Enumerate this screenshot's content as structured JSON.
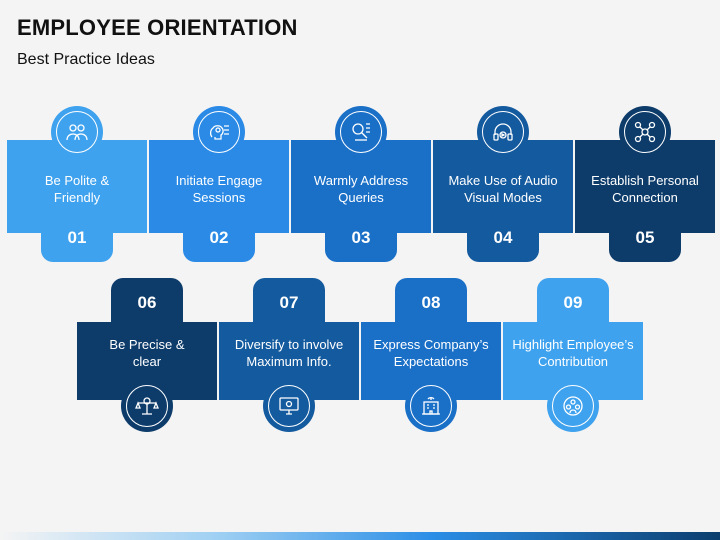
{
  "title": "EMPLOYEE ORIENTATION",
  "subtitle": "Best Practice Ideas",
  "steps": [
    {
      "number": "01",
      "label_line1": "Be Polite &",
      "label_line2": "Friendly",
      "icon": "people-icon",
      "color": "#3fa2ee"
    },
    {
      "number": "02",
      "label_line1": "Initiate Engage",
      "label_line2": "Sessions",
      "icon": "brain-idea-icon",
      "color": "#2a8ae6"
    },
    {
      "number": "03",
      "label_line1": "Warmly Address",
      "label_line2": "Queries",
      "icon": "search-list-icon",
      "color": "#1a6fc7"
    },
    {
      "number": "04",
      "label_line1": "Make Use of Audio",
      "label_line2": "Visual Modes",
      "icon": "headphones-icon",
      "color": "#145a9e"
    },
    {
      "number": "05",
      "label_line1": "Establish Personal",
      "label_line2": "Connection",
      "icon": "network-icon",
      "color": "#0d3c6b"
    },
    {
      "number": "06",
      "label_line1": "Be Precise &",
      "label_line2": "clear",
      "icon": "scale-icon",
      "color": "#0d3c6b"
    },
    {
      "number": "07",
      "label_line1": "Diversify to involve",
      "label_line2": "Maximum Info.",
      "icon": "monitor-icon",
      "color": "#145a9e"
    },
    {
      "number": "08",
      "label_line1": "Express Company’s",
      "label_line2": "Expectations",
      "icon": "building-icon",
      "color": "#1a6fc7"
    },
    {
      "number": "09",
      "label_line1": "Highlight Employee’s",
      "label_line2": "Contribution",
      "icon": "team-icon",
      "color": "#3fa2ee"
    }
  ]
}
